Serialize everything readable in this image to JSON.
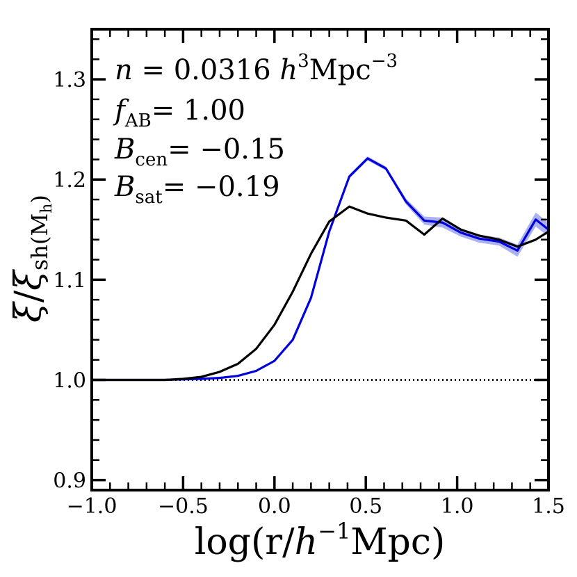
{
  "chart_data": {
    "type": "line",
    "title": "",
    "xlabel": "log(r/h⁻¹Mpc)",
    "ylabel": "ξ/ξ_sh(M_h)",
    "xlim": [
      -1.0,
      1.5
    ],
    "ylim": [
      0.89,
      1.35
    ],
    "x_ticks": [
      -1.0,
      -0.5,
      0.0,
      0.5,
      1.0,
      1.5
    ],
    "x_tick_labels": [
      "−1.0",
      "−0.5",
      "0.0",
      "0.5",
      "1.0",
      "1.5"
    ],
    "y_ticks": [
      0.9,
      1.0,
      1.1,
      1.2,
      1.3
    ],
    "y_tick_labels": [
      "0.9",
      "1.0",
      "1.1",
      "1.2",
      "1.3"
    ],
    "grid": false,
    "reference_line": {
      "y": 1.0,
      "style": "dotted",
      "color": "#000000"
    },
    "annotations": {
      "density": {
        "lhs": "n",
        "value": "= 0.0316",
        "unit_prefix": "h",
        "unit_prefix_exp": "3",
        "unit": "Mpc",
        "unit_exp": "−3"
      },
      "f_ab": {
        "symbol": "f",
        "sub": "AB",
        "value": "= 1.00"
      },
      "b_cen": {
        "symbol": "B",
        "sub": "cen",
        "value": "= −0.15"
      },
      "b_sat": {
        "symbol": "B",
        "sub": "sat",
        "value": "= −0.19"
      }
    },
    "series": [
      {
        "name": "blue",
        "color": "#0000dd",
        "band_color": "#aab0f0",
        "x": [
          -1.0,
          -0.9,
          -0.8,
          -0.7,
          -0.6,
          -0.5,
          -0.4,
          -0.3,
          -0.2,
          -0.1,
          0.0,
          0.1,
          0.2,
          0.3,
          0.41,
          0.51,
          0.61,
          0.72,
          0.82,
          0.92,
          1.02,
          1.12,
          1.23,
          1.33,
          1.43,
          1.5
        ],
        "y": [
          1.0,
          1.0,
          1.0,
          1.0,
          1.0,
          1.0005,
          1.001,
          1.002,
          1.004,
          1.009,
          1.019,
          1.04,
          1.082,
          1.148,
          1.203,
          1.221,
          1.211,
          1.178,
          1.159,
          1.157,
          1.147,
          1.141,
          1.138,
          1.129,
          1.16,
          1.15
        ],
        "band_half_width": [
          0,
          0,
          0,
          0,
          0,
          0,
          0,
          0,
          0,
          0,
          0.001,
          0.001,
          0.001,
          0.001,
          0.002,
          0.002,
          0.002,
          0.003,
          0.004,
          0.005,
          0.004,
          0.004,
          0.004,
          0.006,
          0.007,
          0.007
        ]
      },
      {
        "name": "black",
        "color": "#000000",
        "x": [
          -1.0,
          -0.9,
          -0.8,
          -0.7,
          -0.6,
          -0.5,
          -0.4,
          -0.3,
          -0.2,
          -0.1,
          0.0,
          0.1,
          0.2,
          0.3,
          0.41,
          0.51,
          0.61,
          0.72,
          0.82,
          0.92,
          1.02,
          1.12,
          1.23,
          1.33,
          1.43,
          1.5
        ],
        "y": [
          1.0,
          1.0,
          1.0,
          1.0,
          1.0,
          1.001,
          1.003,
          1.008,
          1.016,
          1.031,
          1.055,
          1.088,
          1.126,
          1.158,
          1.173,
          1.166,
          1.162,
          1.159,
          1.145,
          1.161,
          1.15,
          1.144,
          1.14,
          1.133,
          1.14,
          1.148
        ]
      }
    ]
  }
}
